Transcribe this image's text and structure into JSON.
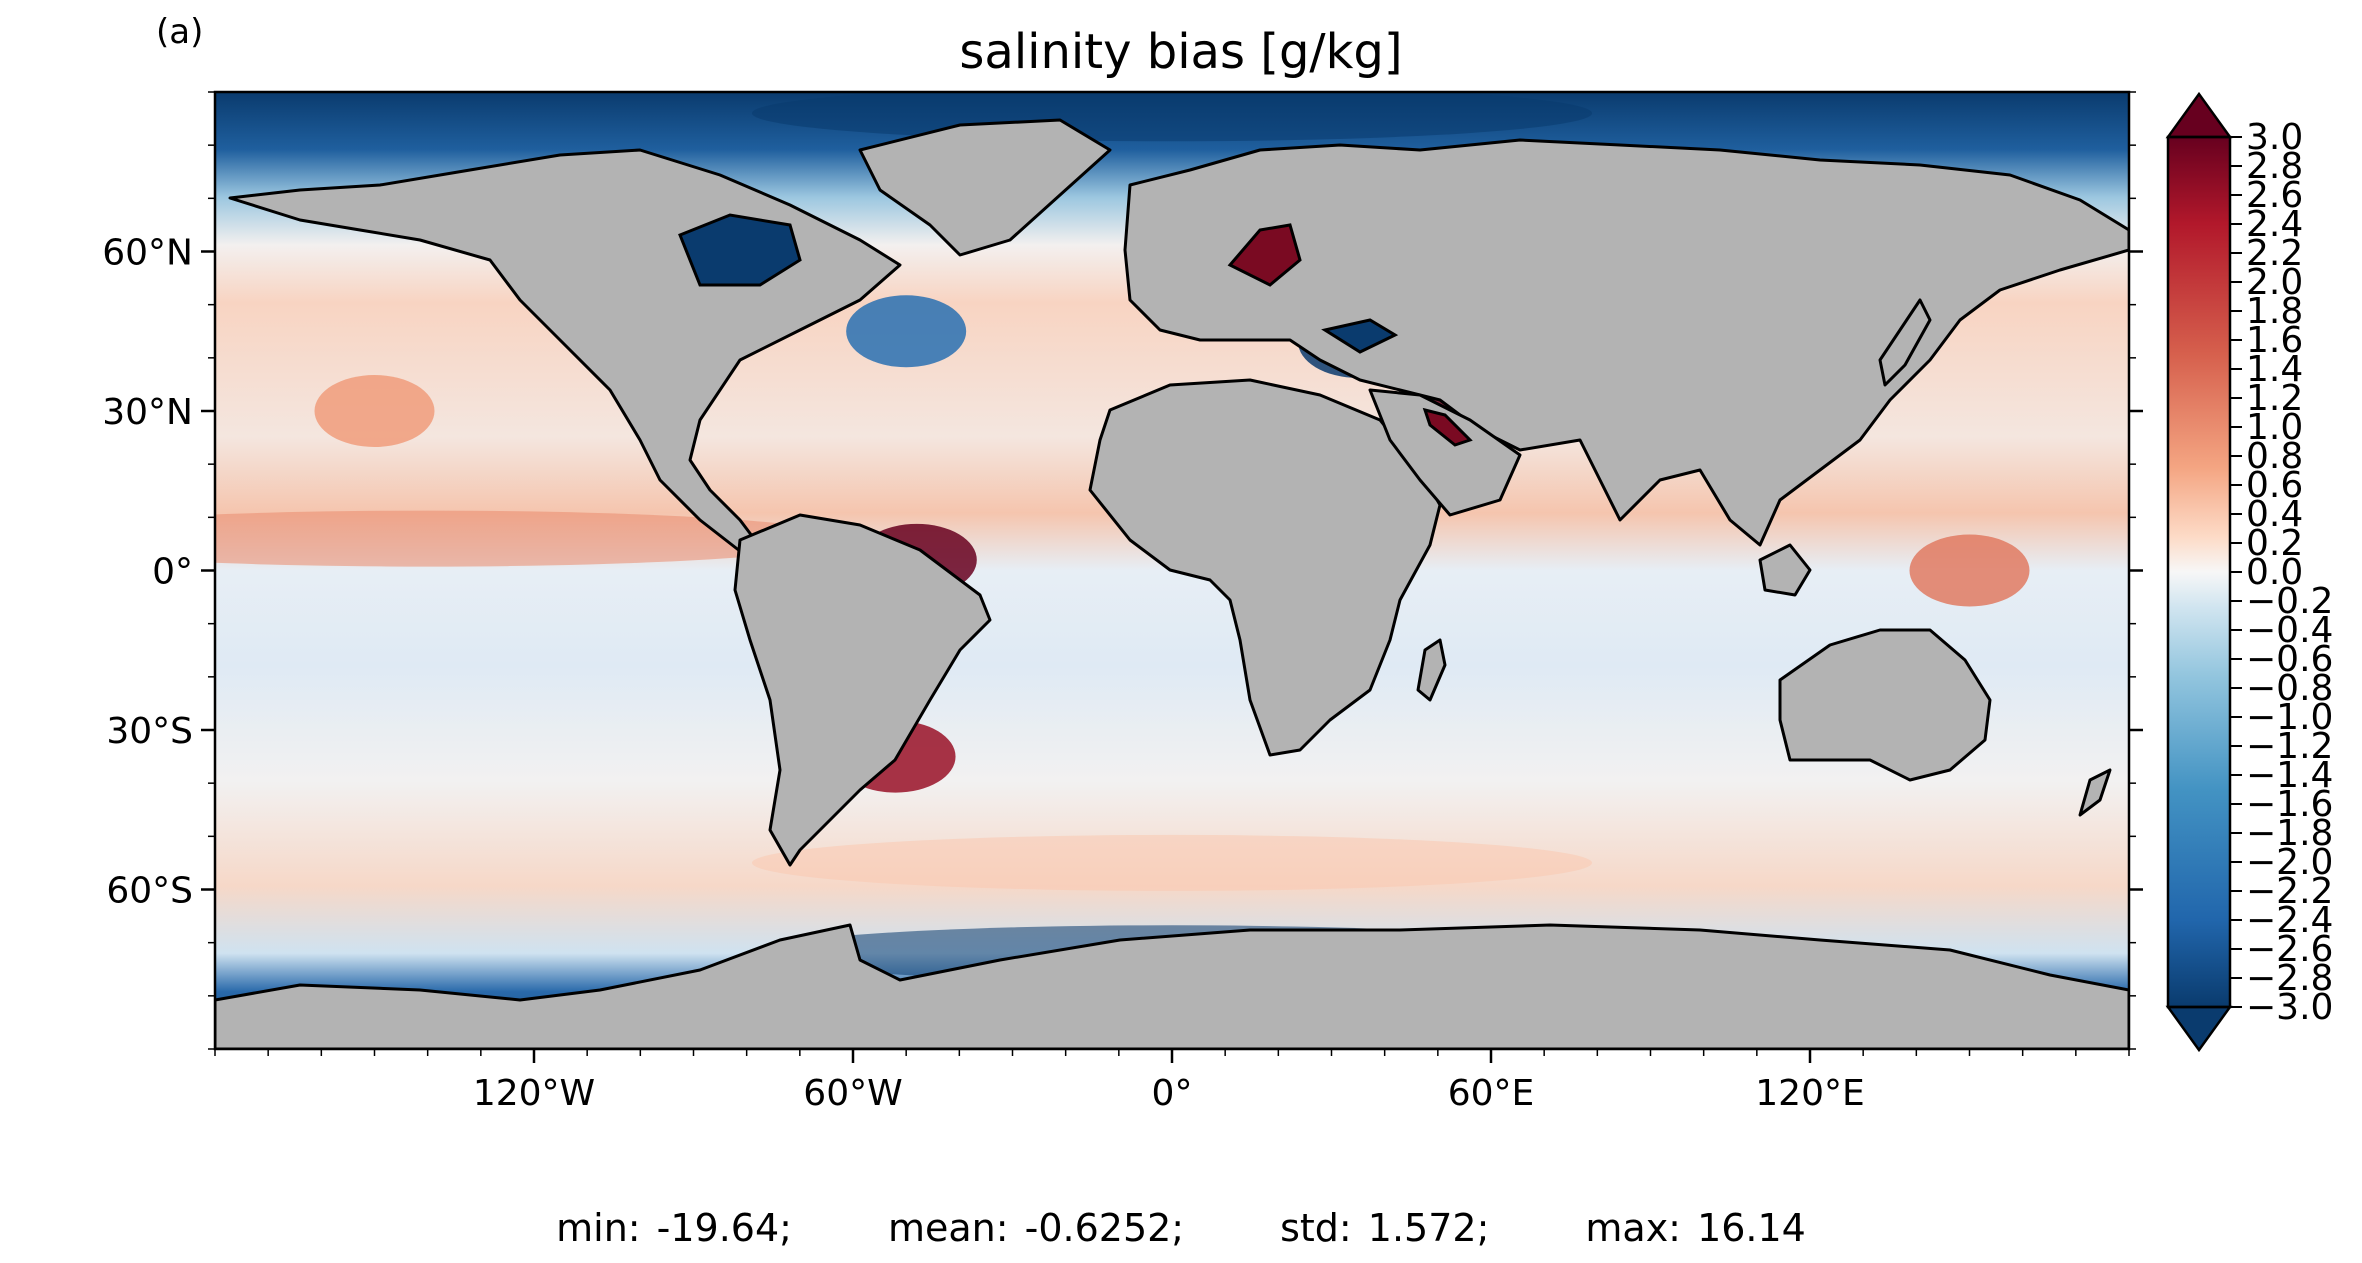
{
  "panel_label": "(a)",
  "title": "salinity bias [g/kg]",
  "map": {
    "projection": "PlateCarree",
    "lon_range": [
      -180,
      180
    ],
    "lat_range": [
      -90,
      90
    ],
    "land_color": "#b3b3b3",
    "coastline_color": "#000000",
    "x_ticks": [
      -120,
      -60,
      0,
      60,
      120
    ],
    "x_tick_labels": [
      "120°W",
      "60°W",
      "0°",
      "60°E",
      "120°E"
    ],
    "y_ticks": [
      60,
      30,
      0,
      -30,
      -60
    ],
    "y_tick_labels": [
      "60°N",
      "30°N",
      "0°",
      "30°S",
      "60°S"
    ],
    "features": [
      {
        "name": "arctic-ocean",
        "lon": 0,
        "lat": 86,
        "value": -3.0
      },
      {
        "name": "north-pacific-subtropical",
        "lon": -150,
        "lat": 30,
        "value": 0.8
      },
      {
        "name": "equatorial-pacific",
        "lon": -140,
        "lat": 6,
        "value": 1.0
      },
      {
        "name": "southern-ocean-band",
        "lon": 0,
        "lat": -55,
        "value": 0.4
      },
      {
        "name": "antarctic-coast",
        "lon": 0,
        "lat": -72,
        "value": -3.0
      },
      {
        "name": "labrador-sea",
        "lon": -50,
        "lat": 45,
        "value": -2.2
      },
      {
        "name": "hudson-bay",
        "lon": -85,
        "lat": 60,
        "value": -3.0
      },
      {
        "name": "baltic-sea",
        "lon": 20,
        "lat": 60,
        "value": 3.0
      },
      {
        "name": "black-sea",
        "lon": 35,
        "lat": 43,
        "value": -3.0
      },
      {
        "name": "persian-gulf",
        "lon": 52,
        "lat": 26,
        "value": 3.0
      },
      {
        "name": "amazon-outflow",
        "lon": -48,
        "lat": 2,
        "value": 3.0
      },
      {
        "name": "la-plata-outflow",
        "lon": -52,
        "lat": -35,
        "value": 2.6
      },
      {
        "name": "west-pacific-warm-pool",
        "lon": 150,
        "lat": 0,
        "value": 1.2
      }
    ]
  },
  "colorbar": {
    "min": -3.0,
    "max": 3.0,
    "colormap": "RdBu_r",
    "extend": "both",
    "tick_labels": [
      "3.0",
      "2.8",
      "2.6",
      "2.4",
      "2.2",
      "2.0",
      "1.8",
      "1.6",
      "1.4",
      "1.2",
      "1.0",
      "0.8",
      "0.6",
      "0.4",
      "0.2",
      "0.0",
      "−0.2",
      "−0.4",
      "−0.6",
      "−0.8",
      "−1.0",
      "−1.2",
      "−1.4",
      "−1.6",
      "−1.8",
      "−2.0",
      "−2.2",
      "−2.4",
      "−2.6",
      "−2.8",
      "−3.0"
    ]
  },
  "stats": {
    "min": "min: -19.64;",
    "mean": "mean: -0.6252;",
    "std": "std: 1.572;",
    "max": "max: 16.14"
  }
}
